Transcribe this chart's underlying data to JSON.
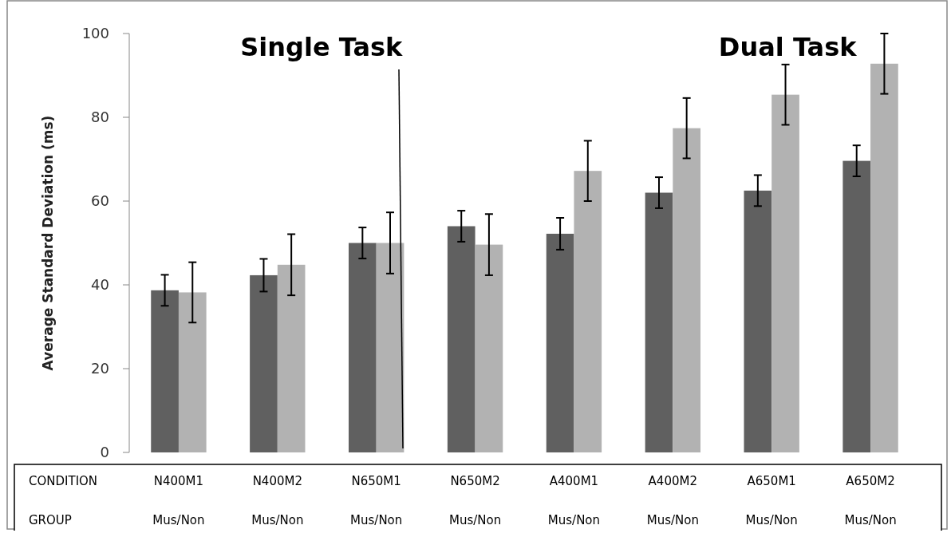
{
  "chart_data": {
    "type": "bar",
    "ylabel": "Average Standard Deviation (ms)",
    "categories": [
      "N400M1",
      "N400M2",
      "N650M1",
      "N650M2",
      "A400M1",
      "A400M2",
      "A650M1",
      "A650M2"
    ],
    "series": [
      {
        "color": "#606060",
        "values": [
          38.7,
          42.3,
          50,
          54,
          52.2,
          62,
          62.5,
          69.6
        ],
        "errors": [
          3.7,
          3.9,
          3.7,
          3.7,
          3.8,
          3.7,
          3.7,
          3.7
        ]
      },
      {
        "color": "#b2b2b2",
        "values": [
          38.2,
          44.8,
          50,
          49.6,
          67.2,
          77.4,
          85.4,
          92.8
        ],
        "errors": [
          7.2,
          7.3,
          7.3,
          7.3,
          7.2,
          7.2,
          7.2,
          7.2
        ]
      }
    ],
    "ylim": [
      0,
      100
    ],
    "yticks": [
      0,
      20,
      40,
      60,
      80,
      100
    ],
    "grid": false,
    "annotations": [
      "Single Task",
      "Dual Task",
      "CONDITION",
      "GROUP",
      "Mus/Non",
      "Mus/Non",
      "Mus/Non",
      "Mus/Non",
      "Mus/Non",
      "Mus/Non",
      "Mus/Non",
      "Mus/Non"
    ]
  }
}
